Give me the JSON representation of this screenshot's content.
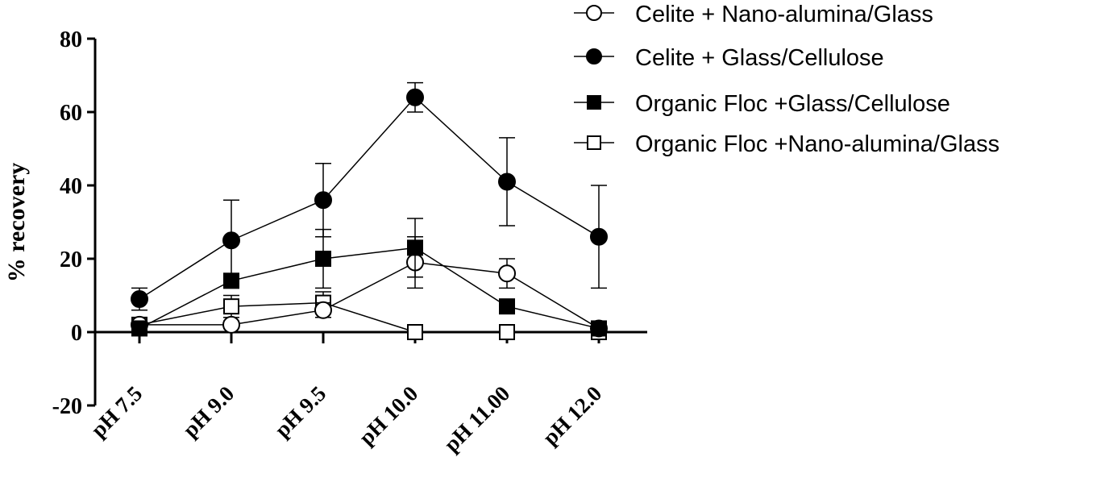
{
  "chart_data": {
    "type": "line",
    "title": "",
    "xlabel": "",
    "ylabel": "% recovery",
    "categories": [
      "pH 7.5",
      "pH 9.0",
      "pH 9.5",
      "pH 10.0",
      "pH 11.00",
      "pH 12.0"
    ],
    "ylim": [
      -20,
      80
    ],
    "yticks": [
      -20,
      0,
      20,
      40,
      60,
      80
    ],
    "grid": false,
    "legend_position": "top-right",
    "series": [
      {
        "name": "Celite + Nano-alumina/Glass",
        "marker": "circle-open",
        "values": [
          2,
          2,
          6,
          19,
          16,
          1
        ],
        "errors": [
          1,
          1,
          2,
          7,
          4,
          1
        ]
      },
      {
        "name": "Celite + Glass/Cellulose",
        "marker": "circle-filled",
        "values": [
          9,
          25,
          36,
          64,
          41,
          26
        ],
        "errors": [
          3,
          11,
          10,
          4,
          12,
          14
        ]
      },
      {
        "name": "Organic Floc +Glass/Cellulose",
        "marker": "square-filled",
        "values": [
          1,
          14,
          20,
          23,
          7,
          1
        ],
        "errors": [
          1,
          2,
          8,
          8,
          1,
          1
        ]
      },
      {
        "name": "Organic Floc +Nano-alumina/Glass",
        "marker": "square-open",
        "values": [
          2,
          7,
          8,
          0,
          0,
          0
        ],
        "errors": [
          1,
          3,
          3,
          0,
          0,
          0
        ]
      }
    ]
  }
}
